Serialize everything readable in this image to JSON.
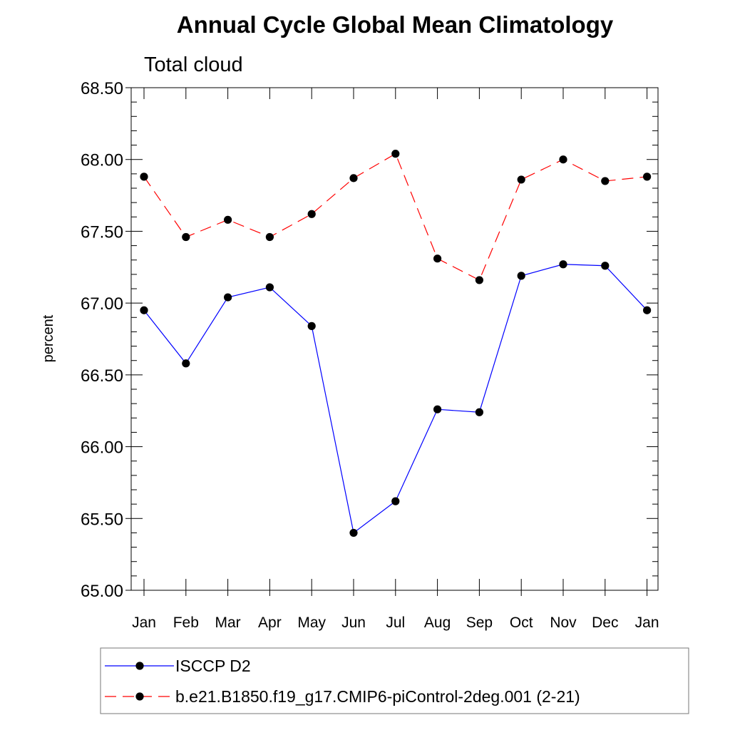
{
  "chart_data": {
    "type": "line",
    "title": "Annual Cycle Global Mean Climatology",
    "subtitle": "Total cloud",
    "xlabel": "",
    "ylabel": "percent",
    "categories": [
      "Jan",
      "Feb",
      "Mar",
      "Apr",
      "May",
      "Jun",
      "Jul",
      "Aug",
      "Sep",
      "Oct",
      "Nov",
      "Dec",
      "Jan"
    ],
    "ylim": [
      65.0,
      68.5
    ],
    "yticks": [
      "65.00",
      "65.50",
      "66.00",
      "66.50",
      "67.00",
      "67.50",
      "68.00",
      "68.50"
    ],
    "legend_position": "bottom",
    "series": [
      {
        "name": "ISCCP D2",
        "color": "#0000ff",
        "dash": "solid",
        "values": [
          66.95,
          66.58,
          67.04,
          67.11,
          66.84,
          65.4,
          65.62,
          66.26,
          66.24,
          67.19,
          67.27,
          67.26,
          66.95
        ]
      },
      {
        "name": "b.e21.B1850.f19_g17.CMIP6-piControl-2deg.001 (2-21)",
        "color": "#ff0000",
        "dash": "dashed",
        "values": [
          67.88,
          67.46,
          67.58,
          67.46,
          67.62,
          67.87,
          68.04,
          67.31,
          67.16,
          67.86,
          68.0,
          67.85,
          67.88
        ]
      }
    ]
  }
}
